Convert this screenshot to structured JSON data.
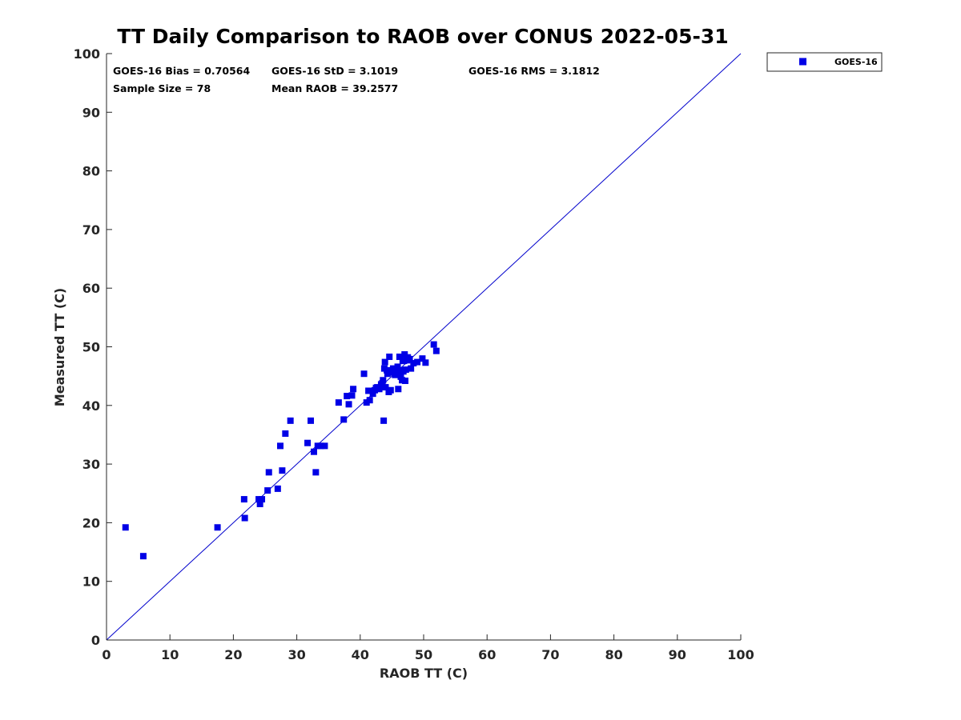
{
  "chart_data": {
    "type": "scatter",
    "title": "TT Daily Comparison to RAOB over CONUS 2022-05-31",
    "xlabel": "RAOB TT (C)",
    "ylabel": "Measured TT (C)",
    "xlim": [
      0,
      100
    ],
    "ylim": [
      0,
      100
    ],
    "xticks": [
      0,
      10,
      20,
      30,
      40,
      50,
      60,
      70,
      80,
      90,
      100
    ],
    "yticks": [
      0,
      10,
      20,
      30,
      40,
      50,
      60,
      70,
      80,
      90,
      100
    ],
    "grid": false,
    "legend_position": "outside-top-right",
    "reference_line": {
      "from": [
        0,
        0
      ],
      "to": [
        100,
        100
      ],
      "color": "#0000cc"
    },
    "stats": {
      "bias": "GOES-16 Bias = 0.70564",
      "std": "GOES-16 StD = 3.1019",
      "rms": "GOES-16 RMS = 3.1812",
      "sample_size": "Sample Size = 78",
      "mean_raob": "Mean RAOB = 39.2577"
    },
    "series": [
      {
        "name": "GOES-16",
        "color": "#0000e6",
        "marker": "square",
        "points": [
          [
            3.0,
            19.2
          ],
          [
            5.8,
            14.3
          ],
          [
            17.5,
            19.2
          ],
          [
            21.7,
            24.0
          ],
          [
            21.8,
            20.8
          ],
          [
            24.0,
            24.0
          ],
          [
            24.2,
            23.2
          ],
          [
            24.5,
            24.0
          ],
          [
            25.4,
            25.5
          ],
          [
            25.6,
            28.6
          ],
          [
            27.0,
            25.8
          ],
          [
            27.4,
            33.1
          ],
          [
            27.7,
            28.9
          ],
          [
            28.2,
            35.2
          ],
          [
            29.0,
            37.4
          ],
          [
            31.7,
            33.6
          ],
          [
            32.2,
            37.4
          ],
          [
            32.7,
            32.1
          ],
          [
            33.0,
            28.6
          ],
          [
            33.3,
            33.1
          ],
          [
            33.8,
            33.1
          ],
          [
            34.4,
            33.1
          ],
          [
            36.6,
            40.5
          ],
          [
            37.4,
            37.6
          ],
          [
            37.9,
            41.6
          ],
          [
            38.2,
            40.2
          ],
          [
            38.7,
            41.7
          ],
          [
            38.9,
            42.8
          ],
          [
            40.6,
            45.4
          ],
          [
            41.0,
            40.5
          ],
          [
            41.3,
            42.5
          ],
          [
            41.5,
            40.9
          ],
          [
            42.0,
            42.0
          ],
          [
            42.3,
            42.6
          ],
          [
            42.7,
            43.1
          ],
          [
            43.0,
            42.8
          ],
          [
            43.3,
            43.6
          ],
          [
            43.6,
            44.3
          ],
          [
            43.7,
            37.4
          ],
          [
            43.8,
            46.3
          ],
          [
            43.9,
            47.4
          ],
          [
            44.0,
            43.1
          ],
          [
            44.3,
            45.4
          ],
          [
            44.5,
            42.3
          ],
          [
            44.6,
            48.3
          ],
          [
            44.8,
            42.6
          ],
          [
            45.0,
            45.6
          ],
          [
            45.2,
            46.3
          ],
          [
            45.4,
            46.2
          ],
          [
            45.7,
            45.5
          ],
          [
            46.0,
            42.8
          ],
          [
            46.1,
            45.6
          ],
          [
            46.2,
            48.3
          ],
          [
            46.4,
            44.9
          ],
          [
            46.6,
            44.3
          ],
          [
            46.8,
            45.8
          ],
          [
            46.9,
            47.6
          ],
          [
            47.0,
            48.7
          ],
          [
            47.1,
            44.2
          ],
          [
            47.2,
            46.1
          ],
          [
            47.4,
            47.7
          ],
          [
            47.8,
            47.9
          ],
          [
            48.0,
            46.3
          ],
          [
            48.4,
            47.2
          ],
          [
            49.0,
            47.4
          ],
          [
            49.8,
            48.0
          ],
          [
            50.3,
            47.3
          ],
          [
            51.6,
            50.4
          ],
          [
            52.0,
            49.3
          ],
          [
            44.2,
            46.0
          ],
          [
            45.5,
            45.2
          ],
          [
            46.5,
            46.0
          ],
          [
            43.5,
            43.8
          ],
          [
            42.5,
            43.0
          ],
          [
            47.5,
            48.2
          ],
          [
            46.7,
            47.6
          ],
          [
            44.7,
            45.7
          ],
          [
            45.9,
            46.6
          ]
        ]
      }
    ]
  }
}
